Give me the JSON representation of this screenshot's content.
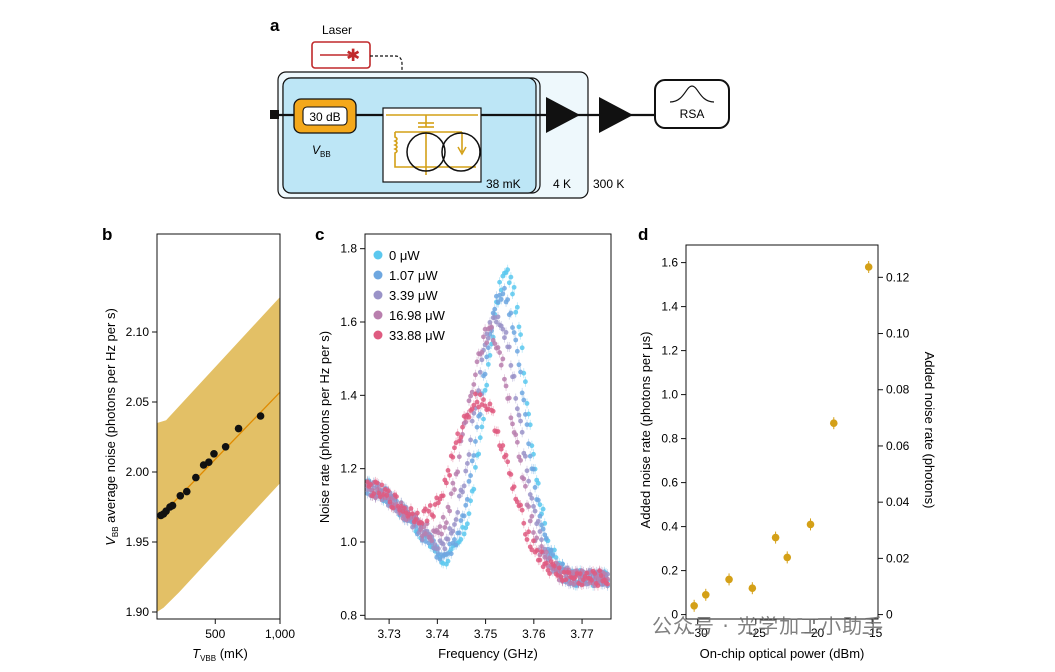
{
  "panels": {
    "a": {
      "label": "a",
      "laser": "Laser",
      "attenuator": "30 dB",
      "vbb_main": "V",
      "vbb_sub": "BB",
      "stage_38mk": "38 mK",
      "stage_4k": "4 K",
      "stage_300k": "300 K",
      "rsa": "RSA"
    },
    "b": {
      "label": "b"
    },
    "c": {
      "label": "c"
    },
    "d": {
      "label": "d"
    }
  },
  "watermark": "公众号 · 光学加工小助手",
  "colors": {
    "gold": "#d4a017",
    "band": "#e3c066",
    "laser_red": "#c0292b",
    "stage_fill_38mk": "#bde6f6",
    "stage_fill_4k": "#e4f4fb",
    "attenuator_fill": "#f4a81b"
  },
  "chart_data": [
    {
      "panel": "b",
      "type": "scatter",
      "title": "",
      "xlabel_main": "T",
      "xlabel_sub": "VBB",
      "xlabel_unit": " (mK)",
      "ylabel_main": "V",
      "ylabel_sub": "BB",
      "ylabel_rest": " average noise (photons per Hz per s)",
      "xlim": [
        50,
        1000
      ],
      "ylim": [
        1.895,
        2.17
      ],
      "xticks": [
        500,
        1000
      ],
      "xtick_labels": [
        "500",
        "1,000"
      ],
      "yticks": [
        1.9,
        1.95,
        2.0,
        2.05,
        2.1
      ],
      "ytick_labels": [
        "1.90",
        "1.95",
        "2.00",
        "2.05",
        "2.10"
      ],
      "points": {
        "x": [
          80,
          100,
          120,
          150,
          170,
          230,
          280,
          350,
          410,
          450,
          490,
          580,
          680,
          850
        ],
        "y": [
          1.969,
          1.97,
          1.972,
          1.975,
          1.976,
          1.983,
          1.986,
          1.996,
          2.005,
          2.007,
          2.013,
          2.018,
          2.031,
          2.04
        ]
      },
      "fit_line": {
        "x": [
          50,
          1000
        ],
        "y": [
          1.966,
          2.057
        ]
      },
      "band_upper": {
        "x": [
          50,
          120,
          1000
        ],
        "y": [
          2.035,
          2.037,
          2.125
        ]
      },
      "band_lower": {
        "x": [
          50,
          100,
          220,
          1000
        ],
        "y": [
          1.9,
          1.903,
          1.914,
          1.992
        ]
      }
    },
    {
      "panel": "c",
      "type": "scatter",
      "title": "",
      "xlabel": "Frequency (GHz)",
      "ylabel": "Noise rate (photons per Hz per s)",
      "xlim": [
        3.725,
        3.776
      ],
      "ylim": [
        0.79,
        1.84
      ],
      "xticks": [
        3.73,
        3.74,
        3.75,
        3.76,
        3.77
      ],
      "xtick_labels": [
        "3.73",
        "3.74",
        "3.75",
        "3.76",
        "3.77"
      ],
      "yticks": [
        0.8,
        1.0,
        1.2,
        1.4,
        1.6,
        1.8
      ],
      "ytick_labels": [
        "0.8",
        "1.0",
        "1.2",
        "1.4",
        "1.6",
        "1.8"
      ],
      "series": [
        {
          "name": "0 μW",
          "color": "#5bc8ef",
          "params": [
            3.7543,
            1.73,
            0.0042
          ]
        },
        {
          "name": "1.07 μW",
          "color": "#6ea7e0",
          "params": [
            3.7535,
            1.68,
            0.0044
          ]
        },
        {
          "name": "3.39 μW",
          "color": "#9a93c8",
          "params": [
            3.7523,
            1.62,
            0.0046
          ]
        },
        {
          "name": "16.98 μW",
          "color": "#b97fae",
          "params": [
            3.7508,
            1.57,
            0.005
          ]
        },
        {
          "name": "33.88 μW",
          "color": "#df5b80",
          "params": [
            3.7487,
            1.39,
            0.0058
          ]
        }
      ],
      "baseline": {
        "left": 1.15,
        "dip": 0.95,
        "right": 0.9
      }
    },
    {
      "panel": "d",
      "type": "scatter",
      "title": "",
      "xlabel": "On-chip optical power (dBm)",
      "ylabel": "Added noise rate (photons per μs)",
      "ylabel_right": "Added noise rate (photons)",
      "xlim": [
        -31,
        -14.5
      ],
      "ylim": [
        -0.02,
        1.68
      ],
      "ylim_right": [
        -0.00157,
        0.1315
      ],
      "xticks": [
        -30,
        -25,
        -20,
        -15
      ],
      "xtick_labels": [
        "−30",
        "−25",
        "−20",
        "−15"
      ],
      "yticks": [
        0,
        0.2,
        0.4,
        0.6,
        0.8,
        1.0,
        1.2,
        1.4,
        1.6
      ],
      "ytick_labels": [
        "0",
        "0.2",
        "0.4",
        "0.6",
        "0.8",
        "1.0",
        "1.2",
        "1.4",
        "1.6"
      ],
      "yticks_right": [
        0,
        0.02,
        0.04,
        0.06,
        0.08,
        0.1,
        0.12
      ],
      "ytick_labels_right": [
        "0",
        "0.02",
        "0.04",
        "0.06",
        "0.08",
        "0.10",
        "0.12"
      ],
      "points": {
        "x": [
          -30.3,
          -29.3,
          -27.3,
          -25.3,
          -23.3,
          -22.3,
          -20.3,
          -18.3,
          -15.3
        ],
        "y": [
          0.04,
          0.09,
          0.16,
          0.12,
          0.35,
          0.26,
          0.41,
          0.87,
          1.58
        ]
      },
      "color": "#d4a017"
    }
  ]
}
